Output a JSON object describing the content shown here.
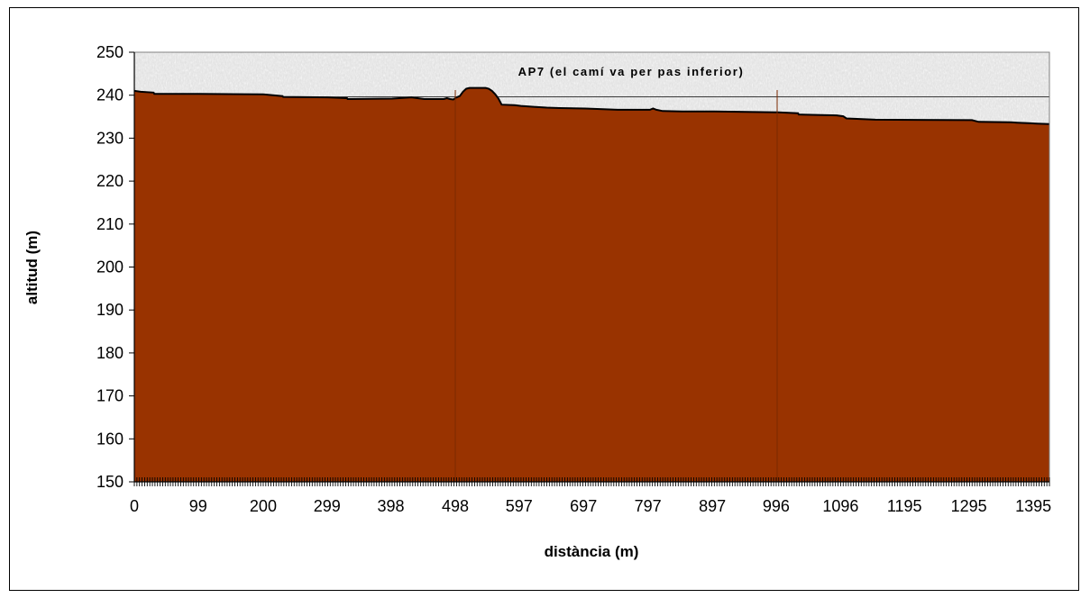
{
  "chart_data": {
    "type": "area",
    "title": "",
    "xlabel": "distància (m)",
    "ylabel": "altitud (m)",
    "xlim": [
      0,
      1420
    ],
    "ylim": [
      150,
      250
    ],
    "y_ticks": [
      150,
      160,
      170,
      180,
      190,
      200,
      210,
      220,
      230,
      240,
      250
    ],
    "x_ticks": [
      0,
      99,
      200,
      299,
      398,
      498,
      597,
      697,
      797,
      897,
      996,
      1096,
      1195,
      1295,
      1395
    ],
    "grid": false,
    "legend": "none",
    "fill_color": "#993300",
    "plot_background": "#e0e0e0",
    "annotation": {
      "text": "AP7 (el camí va per pas inferior)",
      "reference_altitude": 239.6
    },
    "series": [
      {
        "x": [
          0,
          10,
          30,
          31,
          100,
          200,
          230,
          231,
          300,
          330,
          331,
          400,
          430,
          450,
          460,
          480,
          485,
          490,
          495,
          500,
          505,
          510,
          515,
          520,
          525,
          530,
          535,
          540,
          545,
          550,
          555,
          560,
          565,
          570,
          590,
          600,
          620,
          640,
          660,
          700,
          750,
          800,
          805,
          810,
          820,
          850,
          900,
          1000,
          1030,
          1031,
          1090,
          1100,
          1105,
          1150,
          1300,
          1310,
          1360,
          1370,
          1400,
          1420
        ],
        "y": [
          241.0,
          240.8,
          240.6,
          240.3,
          240.3,
          240.2,
          239.8,
          239.6,
          239.5,
          239.3,
          239.1,
          239.2,
          239.5,
          239.1,
          239.1,
          239.1,
          239.3,
          239.1,
          239.0,
          239.5,
          239.8,
          240.8,
          241.5,
          241.7,
          241.7,
          241.7,
          241.7,
          241.7,
          241.7,
          241.5,
          241.0,
          240.2,
          239.2,
          237.8,
          237.7,
          237.5,
          237.3,
          237.1,
          237.0,
          236.9,
          236.6,
          236.6,
          236.9,
          236.6,
          236.3,
          236.2,
          236.2,
          236.0,
          235.8,
          235.5,
          235.3,
          235.1,
          234.6,
          234.3,
          234.2,
          233.8,
          233.7,
          233.6,
          233.4,
          233.3
        ]
      }
    ]
  }
}
